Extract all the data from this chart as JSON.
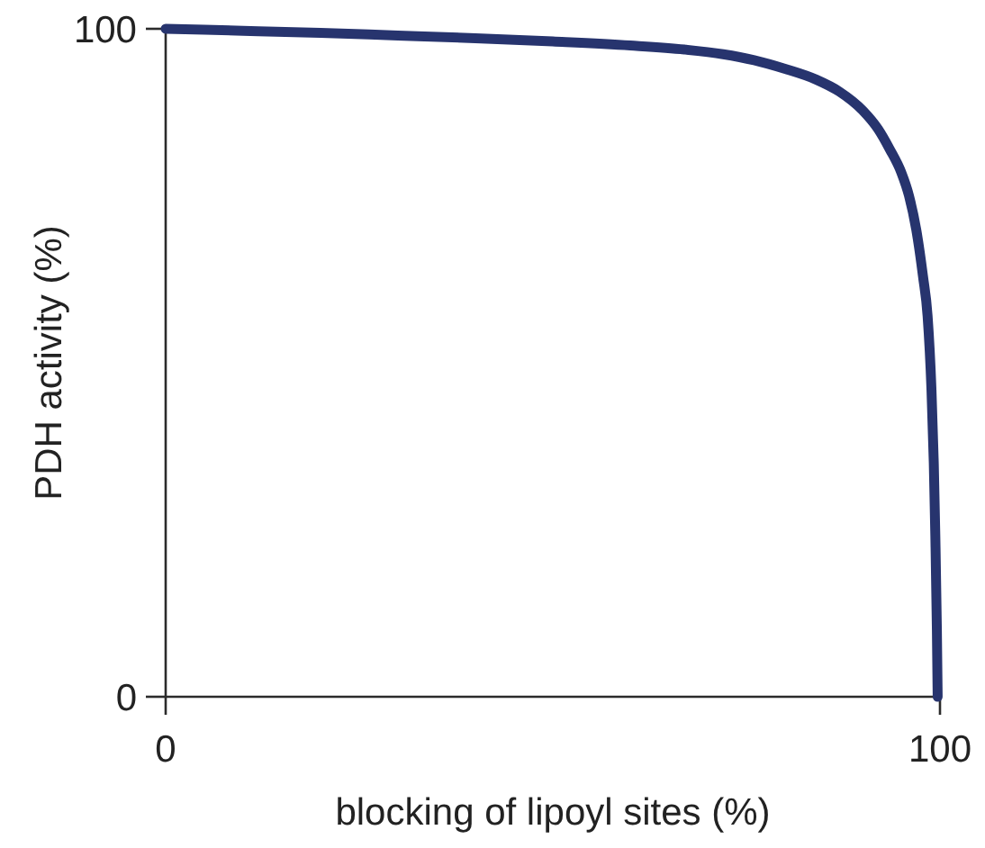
{
  "chart_data": {
    "type": "line",
    "xlabel": "blocking of lipoyl sites (%)",
    "ylabel": "PDH activity (%)",
    "x": [
      0,
      10,
      20,
      30,
      40,
      50,
      60,
      67,
      72,
      76,
      80,
      84,
      87,
      90,
      92,
      93.5,
      95,
      96,
      97,
      97.8,
      98.4,
      98.9,
      99.2,
      99.4,
      99.6,
      99.7
    ],
    "series": [
      {
        "color": "#27346e",
        "values": [
          100,
          99.7,
          99.4,
          99,
          98.6,
          98.1,
          97.5,
          96.9,
          96.2,
          95.3,
          94,
          92.4,
          90.6,
          87.8,
          85,
          82,
          78.5,
          75,
          69.5,
          63,
          57,
          46,
          35,
          24,
          10,
          0
        ]
      }
    ],
    "xlim": [
      0,
      100
    ],
    "ylim": [
      0,
      100
    ],
    "xticks": [
      0,
      100
    ],
    "yticks": [
      0,
      100
    ],
    "marker": "none",
    "line_style": "solid"
  }
}
